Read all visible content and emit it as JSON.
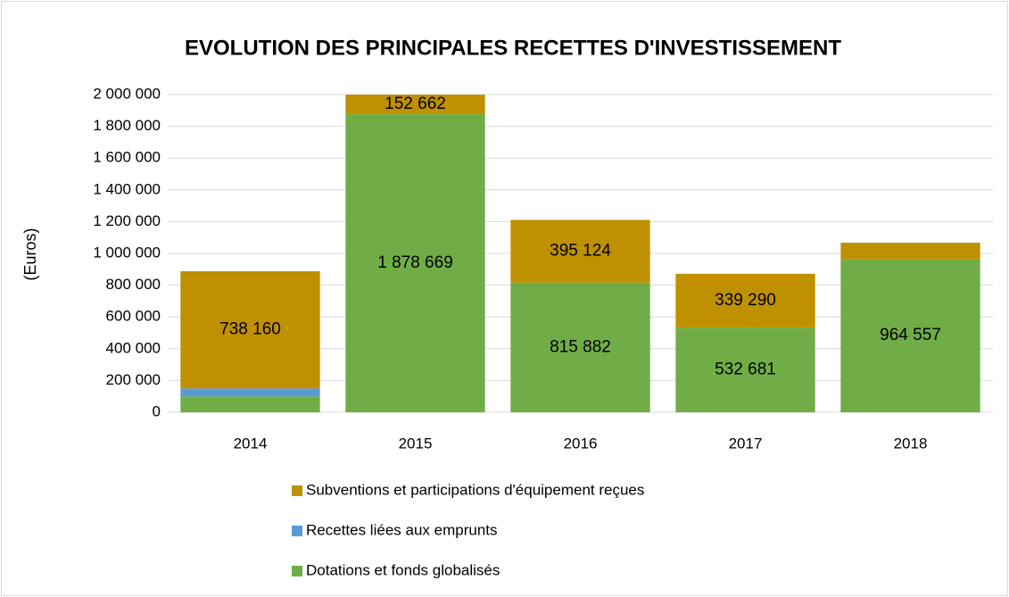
{
  "chart_data": {
    "type": "stacked_bar",
    "title": "EVOLUTION DES PRINCIPALES RECETTES D'INVESTISSEMENT",
    "y_label": "(Euros)",
    "categories": [
      "2014",
      "2015",
      "2016",
      "2017",
      "2018"
    ],
    "series": [
      {
        "name": "Dotations et fonds globalisés",
        "color": "#70ad47",
        "values": [
          100000,
          1878669,
          815882,
          532681,
          964557
        ],
        "value_labels": [
          null,
          "1 878 669",
          "815 882",
          "532 681",
          "964 557"
        ]
      },
      {
        "name": "Recettes liées aux emprunts",
        "color": "#5b9bd5",
        "values": [
          50000,
          0,
          0,
          0,
          0
        ],
        "value_labels": [
          null,
          null,
          null,
          null,
          null
        ]
      },
      {
        "name": "Subventions et participations d'équipement reçues",
        "color": "#bf9000",
        "values": [
          738160,
          152662,
          395124,
          339290,
          103000
        ],
        "value_labels": [
          "738 160",
          "152 662",
          "395 124",
          "339 290",
          null
        ]
      }
    ],
    "ylim": [
      0,
      2000000
    ],
    "yticks": [
      0,
      {
        "value": 200000,
        "label": "200 000"
      },
      {
        "value": 400000,
        "label": "400 000"
      },
      {
        "value": 600000,
        "label": "600 000"
      },
      {
        "value": 800000,
        "label": "800 000"
      },
      {
        "value": 1000000,
        "label": "1 000 000"
      },
      {
        "value": 1200000,
        "label": "1 200 000"
      },
      {
        "value": 1400000,
        "label": "1 400 000"
      },
      {
        "value": 1600000,
        "label": "1 600 000"
      },
      {
        "value": 1800000,
        "label": "1 800 000"
      },
      {
        "value": 2000000,
        "label": "2 000 000"
      }
    ],
    "grid": true
  }
}
